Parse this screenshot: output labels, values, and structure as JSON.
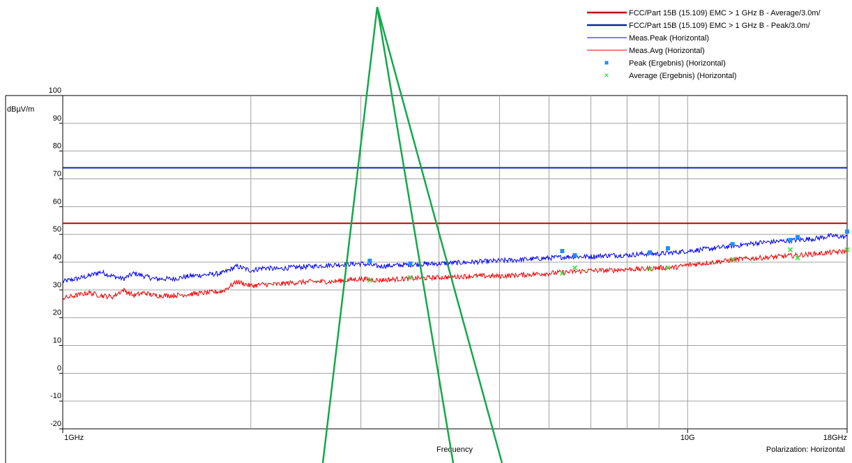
{
  "chart_data": {
    "type": "line",
    "ylabel": "dBµV/m",
    "xlabel": "Frequency",
    "polarization_label": "Polarization: Horizontal",
    "x_scale": "log",
    "xlim_ghz": [
      1,
      18
    ],
    "ylim": [
      -20,
      100
    ],
    "grid": true,
    "legend_position": "top-right",
    "y_ticks": [
      100,
      90,
      80,
      70,
      60,
      50,
      40,
      30,
      20,
      10,
      0,
      -10,
      -20
    ],
    "x_ticks": [
      {
        "ghz": 1,
        "label": "1GHz"
      },
      {
        "ghz": 10,
        "label": "10G"
      },
      {
        "ghz": 18,
        "label": "18GHz"
      }
    ],
    "x_grid_ghz": [
      2,
      3,
      4,
      5,
      6,
      7,
      8,
      9,
      10
    ],
    "limits": [
      {
        "name": "FCC/Part 15B (15.109) EMC > 1 GHz B - Average/3.0m/",
        "value": 54,
        "color": "#c00000"
      },
      {
        "name": "FCC/Part 15B (15.109) EMC > 1 GHz B - Peak/3.0m/",
        "value": 74,
        "color": "#002aa6"
      }
    ],
    "series": [
      {
        "name": "Meas.Peak (Horizontal)",
        "color": "#0000ee",
        "x_ghz": [
          1.0,
          1.05,
          1.1,
          1.15,
          1.2,
          1.25,
          1.3,
          1.35,
          1.4,
          1.5,
          1.6,
          1.7,
          1.8,
          1.9,
          2.0,
          2.1,
          2.2,
          2.3,
          2.5,
          2.7,
          3.0,
          3.2,
          3.5,
          4.0,
          4.5,
          5.0,
          5.5,
          6.0,
          6.5,
          7.0,
          7.5,
          8.0,
          8.5,
          9.0,
          9.5,
          10.0,
          11.0,
          12.0,
          13.0,
          14.0,
          15.0,
          16.0,
          17.0,
          18.0
        ],
        "values": [
          33,
          34,
          35,
          36.5,
          35,
          34,
          36,
          35,
          34,
          34,
          35,
          35.5,
          36,
          38.5,
          37,
          38,
          37.5,
          38,
          38.5,
          39,
          39.5,
          38.5,
          39,
          39.5,
          40,
          40.5,
          41,
          41.5,
          42,
          42,
          42.5,
          42.5,
          43,
          43,
          43.5,
          44,
          45,
          46,
          47,
          47.5,
          48,
          48.5,
          49.5,
          49
        ]
      },
      {
        "name": "Meas.Avg (Horizontal)",
        "color": "#ee0000",
        "x_ghz": [
          1.0,
          1.05,
          1.1,
          1.15,
          1.2,
          1.25,
          1.3,
          1.35,
          1.4,
          1.5,
          1.6,
          1.7,
          1.8,
          1.9,
          2.0,
          2.1,
          2.2,
          2.3,
          2.5,
          2.7,
          3.0,
          3.2,
          3.5,
          4.0,
          4.5,
          5.0,
          5.5,
          6.0,
          6.5,
          7.0,
          7.5,
          8.0,
          8.5,
          9.0,
          9.5,
          10.0,
          11.0,
          12.0,
          13.0,
          14.0,
          15.0,
          16.0,
          17.0,
          18.0
        ],
        "values": [
          27,
          28,
          29,
          28,
          27.5,
          30,
          28,
          29,
          28,
          28,
          28.5,
          29,
          29.5,
          33,
          31.5,
          32,
          32,
          32.5,
          33,
          33,
          34,
          33.5,
          34,
          34.5,
          35,
          35,
          35.5,
          36,
          36.5,
          37,
          37,
          37.5,
          37.5,
          38,
          38,
          39,
          40,
          41,
          41.5,
          42,
          42.5,
          43,
          43.5,
          44
        ]
      },
      {
        "name": "Peak (Ergebnis) (Horizontal)",
        "type": "scatter",
        "color": "#1e8fff",
        "x_ghz": [
          3.1,
          3.6,
          6.3,
          6.6,
          8.7,
          9.3,
          11.8,
          14.6,
          15.0,
          18.0
        ],
        "values": [
          40.5,
          39.5,
          44,
          42.5,
          43.5,
          45,
          46.5,
          48,
          49,
          51
        ]
      },
      {
        "name": "Average (Ergebnis) (Horizontal)",
        "type": "scatter",
        "color": "#33dd33",
        "x_ghz": [
          3.1,
          3.6,
          6.3,
          6.6,
          8.7,
          9.3,
          11.8,
          14.6,
          15.0,
          18.0
        ],
        "values": [
          33.5,
          34.5,
          36,
          38,
          37.5,
          38,
          41,
          44.5,
          41.5,
          44.5
        ]
      }
    ]
  }
}
